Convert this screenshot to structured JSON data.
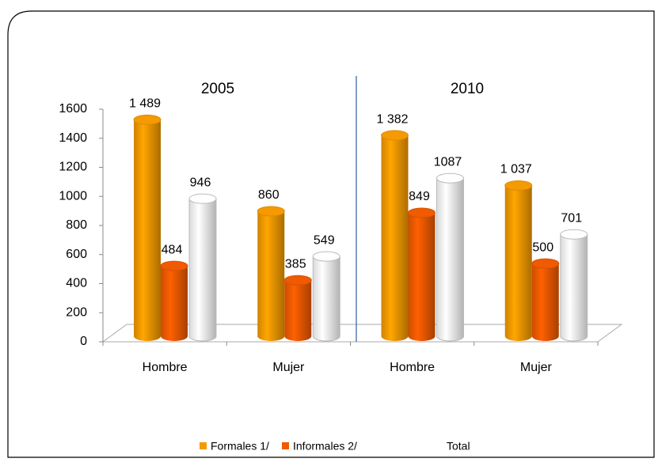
{
  "chart_data": {
    "type": "bar3d",
    "groups": [
      "2005",
      "2010"
    ],
    "categories": [
      "Hombre",
      "Mujer",
      "Hombre",
      "Mujer"
    ],
    "series": [
      {
        "name": "Formales 1/",
        "color": "#f59a00",
        "values": [
          1489,
          860,
          1382,
          1037
        ],
        "value_labels": [
          "1 489",
          "860",
          "1 382",
          "1 037"
        ]
      },
      {
        "name": "Informales 2/",
        "color": "#f05a00",
        "values": [
          484,
          385,
          849,
          500
        ]
      },
      {
        "name": "Total",
        "color": "#ffffff",
        "values": [
          946,
          549,
          1087,
          701
        ]
      }
    ],
    "ylim": [
      0,
      1600
    ],
    "yticks": [
      0,
      200,
      400,
      600,
      800,
      1000,
      1200,
      1400,
      1600
    ]
  }
}
